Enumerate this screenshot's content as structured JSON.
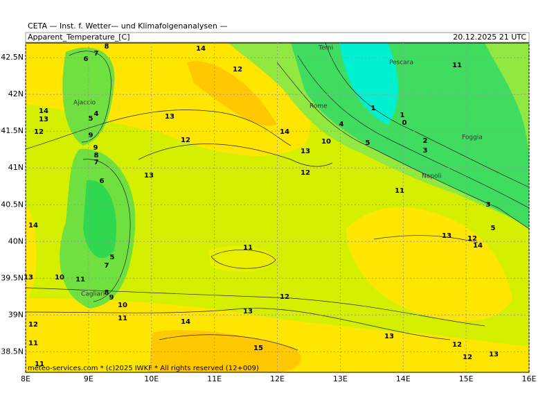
{
  "header": {
    "org": "CETA — Inst. f. Wetter— und Klimafolgenanalysen —",
    "title": "Apparent_Temperature_[C]",
    "timestamp": "20.12.2025 21 UTC"
  },
  "footer": "meteo-services.com * (c)2025 IWKF * All rights reserved (12+009)",
  "map": {
    "xlim": [
      8,
      16
    ],
    "ylim": [
      38.22,
      42.7
    ],
    "xticks": [
      {
        "value": 8,
        "label": "8E"
      },
      {
        "value": 9,
        "label": "9E"
      },
      {
        "value": 10,
        "label": "10E"
      },
      {
        "value": 11,
        "label": "11E"
      },
      {
        "value": 12,
        "label": "12E"
      },
      {
        "value": 13,
        "label": "13E"
      },
      {
        "value": 14,
        "label": "14E"
      },
      {
        "value": 15,
        "label": "15E"
      },
      {
        "value": 16,
        "label": "16E"
      }
    ],
    "yticks": [
      {
        "value": 38.5,
        "label": "38.5N"
      },
      {
        "value": 39,
        "label": "39N"
      },
      {
        "value": 39.5,
        "label": "39.5N"
      },
      {
        "value": 40,
        "label": "40N"
      },
      {
        "value": 40.5,
        "label": "40.5N"
      },
      {
        "value": 41,
        "label": "41N"
      },
      {
        "value": 41.5,
        "label": "41.5N"
      },
      {
        "value": 42,
        "label": "42N"
      },
      {
        "value": 42.5,
        "label": "42.5N"
      }
    ],
    "cities": [
      "Terni",
      "Pescara",
      "Ajaccio",
      "Rome",
      "Foggia",
      "Napoli",
      "Cagliari"
    ],
    "contour_labels": [
      14,
      12,
      8,
      7,
      6,
      4,
      5,
      14,
      13,
      12,
      9,
      13,
      12,
      14,
      13,
      10,
      4,
      1,
      1,
      0,
      2,
      3,
      5,
      9,
      8,
      7,
      13,
      12,
      6,
      11,
      3,
      14,
      5,
      13,
      12,
      14,
      11,
      5,
      7,
      13,
      10,
      11,
      8,
      9,
      10,
      11,
      12,
      13,
      12,
      14,
      11,
      13,
      15,
      12,
      12,
      13,
      11,
      11
    ]
  }
}
